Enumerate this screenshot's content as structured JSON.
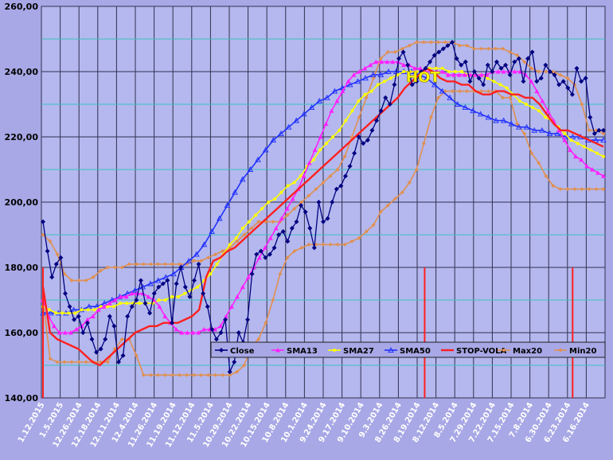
{
  "chart_data": {
    "type": "line",
    "x_reversed": true,
    "xtick_labels": [
      "1.12.2015",
      "1.5.2015",
      "12.26.2014",
      "12.18.2014",
      "12.11.2014",
      "12.4.2014",
      "11.26.2014",
      "11.19.2014",
      "11.12.2014",
      "11.5.2014",
      "10.29.2014",
      "10.22.2014",
      "10.15.2014",
      "10.8.2014",
      "10.1.2014",
      "9.24.2014",
      "9.17.2014",
      "9.10.2014",
      "9.3.2014",
      "8.26.2014",
      "8.19.2014",
      "8.12.2014",
      "8.5.2014",
      "7.29.2014",
      "7.22.2014",
      "7.15.2014",
      "7.8.2014",
      "6.30.2014",
      "6.23.2014",
      "6.16.2014"
    ],
    "ytick_labels": [
      "140,00",
      "160,00",
      "180,00",
      "200,00",
      "220,00",
      "240,00",
      "260,00"
    ],
    "ylim": [
      140,
      260
    ],
    "grid": true,
    "legend_position": "inside-bottom",
    "annotation": "HOT",
    "series": [
      {
        "name": "Close",
        "color": "#000080",
        "marker": "diamond",
        "values": [
          194,
          185,
          177,
          181,
          183,
          172,
          168,
          164,
          165,
          160,
          163,
          158,
          154,
          155,
          158,
          165,
          162,
          151,
          153,
          165,
          168,
          170,
          176,
          169,
          166,
          172,
          174,
          175,
          176,
          163,
          175,
          180,
          174,
          171,
          176,
          181,
          172,
          168,
          161,
          158,
          160,
          164,
          148,
          151,
          160,
          157,
          164,
          178,
          184,
          185,
          183,
          184,
          186,
          190,
          191,
          188,
          192,
          194,
          199,
          197,
          192,
          186,
          200,
          194,
          195,
          200,
          204,
          205,
          208,
          211,
          215,
          220,
          218,
          219,
          222,
          225,
          228,
          232,
          230,
          236,
          244,
          246,
          242,
          236,
          237,
          240,
          241,
          243,
          245,
          246,
          247,
          248,
          249,
          244,
          242,
          243,
          237,
          240,
          238,
          236,
          242,
          240,
          243,
          241,
          242,
          239,
          243,
          244,
          237,
          244,
          246,
          237,
          238,
          242,
          240,
          239,
          236,
          237,
          235,
          233,
          241,
          237,
          238,
          226,
          221,
          222,
          222
        ]
      },
      {
        "name": "SMA13",
        "color": "#ff20ff",
        "marker": "triangle",
        "values": [
          170,
          165,
          162,
          160,
          160,
          160,
          161,
          162,
          164,
          165,
          167,
          168,
          169,
          170,
          171,
          171,
          172,
          172,
          172,
          171,
          170,
          168,
          165,
          163,
          161,
          160,
          160,
          160,
          160,
          161,
          161,
          161,
          162,
          165,
          168,
          171,
          174,
          177,
          180,
          183,
          186,
          189,
          192,
          195,
          198,
          201,
          204,
          208,
          212,
          216,
          220,
          224,
          228,
          231,
          234,
          237,
          239,
          240,
          241,
          242,
          243,
          243,
          243,
          243,
          243,
          242,
          242,
          241,
          241,
          240,
          240,
          240,
          240,
          239,
          239,
          239,
          239,
          239,
          239,
          239,
          239,
          240,
          240,
          240,
          240,
          240,
          240,
          239,
          237,
          234,
          231,
          228,
          225,
          222,
          219,
          216,
          214,
          213,
          211,
          210,
          209,
          208
        ]
      },
      {
        "name": "SMA27",
        "color": "#ffff00",
        "marker": "circle",
        "values": [
          168,
          167,
          166,
          166,
          166,
          166,
          167,
          167,
          167,
          168,
          168,
          168,
          169,
          169,
          169,
          169,
          169,
          169,
          170,
          170,
          171,
          171,
          172,
          173,
          174,
          176,
          178,
          181,
          184,
          187,
          189,
          192,
          194,
          196,
          198,
          200,
          201,
          203,
          205,
          206,
          208,
          211,
          213,
          216,
          218,
          220,
          222,
          225,
          228,
          231,
          233,
          234,
          236,
          237,
          238,
          239,
          240,
          240,
          240,
          240,
          241,
          241,
          241,
          240,
          240,
          240,
          239,
          239,
          239,
          238,
          237,
          236,
          235,
          233,
          231,
          230,
          229,
          228,
          226,
          225,
          223,
          221,
          219,
          218,
          217,
          216,
          215,
          214
        ]
      },
      {
        "name": "SMA50",
        "color": "#2030ff",
        "marker": "triangle-open",
        "values": [
          166,
          166,
          166,
          166,
          167,
          167,
          168,
          168,
          169,
          170,
          171,
          172,
          173,
          174,
          175,
          176,
          177,
          178,
          180,
          182,
          184,
          187,
          191,
          195,
          199,
          203,
          207,
          210,
          213,
          216,
          219,
          221,
          223,
          225,
          227,
          229,
          231,
          232,
          234,
          235,
          236,
          237,
          238,
          239,
          239,
          240,
          240,
          240,
          240,
          239,
          238,
          236,
          234,
          232,
          230,
          229,
          228,
          227,
          226,
          225,
          225,
          224,
          223,
          223,
          222,
          222,
          221,
          221,
          220,
          220,
          220,
          219,
          219,
          219
        ]
      },
      {
        "name": "STOP-VOLA",
        "color": "#ff2020",
        "marker": "line",
        "values": [
          174,
          160,
          158,
          157,
          156,
          155,
          153,
          151,
          150,
          152,
          154,
          156,
          158,
          160,
          161,
          162,
          162,
          163,
          163,
          163,
          164,
          165,
          167,
          177,
          182,
          183,
          185,
          186,
          188,
          190,
          192,
          194,
          196,
          198,
          200,
          202,
          204,
          206,
          208,
          210,
          212,
          214,
          216,
          218,
          220,
          222,
          224,
          226,
          228,
          230,
          232,
          235,
          237,
          239,
          241,
          240,
          238,
          237,
          237,
          236,
          236,
          234,
          233,
          233,
          234,
          234,
          233,
          233,
          232,
          232,
          230,
          227,
          224,
          222,
          222,
          221,
          220,
          219,
          218,
          217
        ]
      },
      {
        "name": "Max20",
        "color": "#e09050",
        "marker": "diamond-small",
        "values": [
          190,
          188,
          184,
          178,
          176,
          176,
          176,
          177,
          179,
          180,
          180,
          180,
          181,
          181,
          181,
          181,
          181,
          181,
          181,
          181,
          181,
          182,
          182,
          183,
          184,
          185,
          186,
          188,
          190,
          192,
          194,
          194,
          194,
          194,
          196,
          198,
          200,
          202,
          204,
          206,
          208,
          210,
          214,
          220,
          226,
          232,
          238,
          244,
          246,
          246,
          247,
          248,
          249,
          249,
          249,
          249,
          249,
          249,
          248,
          248,
          247,
          247,
          247,
          247,
          247,
          246,
          245,
          243,
          241,
          240,
          240,
          240,
          239,
          238,
          236,
          230,
          222,
          222,
          221
        ]
      },
      {
        "name": "Min20",
        "color": "#e09050",
        "marker": "diamond-small",
        "values": [
          170,
          152,
          151,
          151,
          151,
          151,
          151,
          151,
          151,
          151,
          155,
          158,
          158,
          153,
          147,
          147,
          147,
          147,
          147,
          147,
          147,
          147,
          147,
          147,
          147,
          147,
          147,
          148,
          150,
          156,
          158,
          163,
          170,
          178,
          183,
          185,
          186,
          187,
          187,
          187,
          187,
          187,
          187,
          188,
          189,
          191,
          193,
          197,
          199,
          201,
          203,
          206,
          210,
          218,
          226,
          232,
          234,
          234,
          234,
          234,
          234,
          234,
          234,
          234,
          232,
          232,
          224,
          221,
          215,
          212,
          208,
          205,
          204,
          204,
          204,
          204,
          204,
          204,
          204
        ]
      }
    ],
    "vertical_markers": [
      0.0,
      0.681,
      0.945
    ]
  }
}
